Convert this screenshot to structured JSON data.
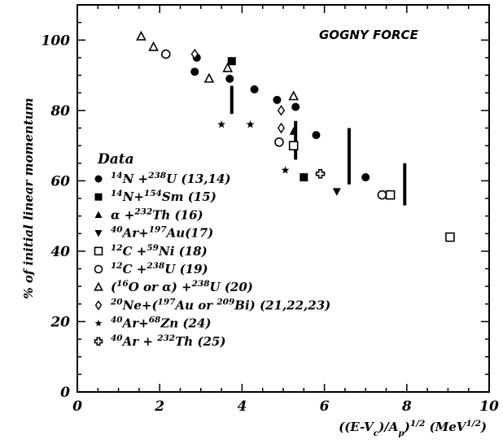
{
  "chart_data": {
    "type": "scatter",
    "title": "",
    "annotation": "GOGNY FORCE",
    "xlabel": "((E-V_c)/A_p)^1/2 (MeV^1/2)",
    "ylabel": "% of initial linear momentum",
    "xlim": [
      0,
      10
    ],
    "ylim": [
      0,
      110
    ],
    "x_ticks": [
      0,
      2,
      4,
      6,
      8,
      10
    ],
    "y_ticks": [
      0,
      20,
      40,
      60,
      80,
      100
    ],
    "grid": false,
    "legend_title": "Data",
    "legend_position": "left",
    "series": [
      {
        "name": "14N + 238U (13,14)",
        "label": [
          [
            "",
            "14"
          ],
          [
            "N +",
            ""
          ],
          [
            "",
            "238"
          ],
          [
            "U (13,14)",
            ""
          ]
        ],
        "marker": "filled-circle",
        "points": [
          [
            2.85,
            91
          ],
          [
            2.9,
            95
          ],
          [
            3.7,
            89
          ],
          [
            4.3,
            86
          ],
          [
            4.85,
            83
          ],
          [
            5.3,
            81
          ],
          [
            5.8,
            73
          ],
          [
            7.0,
            61
          ]
        ]
      },
      {
        "name": "14N+154Sm (15)",
        "label": [
          [
            "",
            "14"
          ],
          [
            "N+",
            ""
          ],
          [
            "",
            "154"
          ],
          [
            "Sm (15)",
            ""
          ]
        ],
        "marker": "filled-square",
        "points": [
          [
            3.75,
            94
          ],
          [
            5.5,
            61
          ]
        ]
      },
      {
        "name": "α +232Th (16)",
        "label": [
          [
            "α +",
            ""
          ],
          [
            "",
            "232"
          ],
          [
            "Th (16)",
            ""
          ]
        ],
        "marker": "filled-triangle-up",
        "points": [
          [
            5.25,
            74
          ]
        ]
      },
      {
        "name": "40Ar+197Au(17)",
        "label": [
          [
            "",
            "40"
          ],
          [
            "Ar+",
            ""
          ],
          [
            "",
            "197"
          ],
          [
            "Au(17)",
            ""
          ]
        ],
        "marker": "filled-triangle-down",
        "points": [
          [
            6.3,
            57
          ]
        ]
      },
      {
        "name": "12C +59Ni (18)",
        "label": [
          [
            "",
            "12"
          ],
          [
            "C +",
            ""
          ],
          [
            "",
            "59"
          ],
          [
            "Ni (18)",
            ""
          ]
        ],
        "marker": "open-square",
        "points": [
          [
            5.25,
            70
          ],
          [
            7.6,
            56
          ],
          [
            9.05,
            44
          ]
        ]
      },
      {
        "name": "12C +238U (19)",
        "label": [
          [
            "",
            "12"
          ],
          [
            "C +",
            ""
          ],
          [
            "",
            "238"
          ],
          [
            "U (19)",
            ""
          ]
        ],
        "marker": "open-circle",
        "points": [
          [
            2.15,
            96
          ],
          [
            4.9,
            71
          ],
          [
            7.4,
            56
          ]
        ]
      },
      {
        "name": "(16O or α) +238U (20)",
        "label": [
          [
            "(",
            ""
          ],
          [
            "",
            "16"
          ],
          [
            "O or α) +",
            ""
          ],
          [
            "",
            "238"
          ],
          [
            "U (20)",
            ""
          ]
        ],
        "marker": "open-triangle-up",
        "points": [
          [
            1.55,
            101
          ],
          [
            1.85,
            98
          ],
          [
            3.2,
            89
          ],
          [
            3.65,
            92
          ],
          [
            5.25,
            84
          ]
        ]
      },
      {
        "name": "20Ne+(197Au or 209Bi) (21,22,23)",
        "label": [
          [
            "",
            "20"
          ],
          [
            "Ne+(",
            ""
          ],
          [
            "",
            "197"
          ],
          [
            "Au or ",
            ""
          ],
          [
            "",
            "209"
          ],
          [
            "Bi) (21,22,23)",
            ""
          ]
        ],
        "marker": "open-diamond",
        "points": [
          [
            2.85,
            96
          ],
          [
            4.95,
            80
          ],
          [
            4.95,
            75
          ]
        ]
      },
      {
        "name": "40Ar+68Zn (24)",
        "label": [
          [
            "",
            "40"
          ],
          [
            "Ar+",
            ""
          ],
          [
            "",
            "68"
          ],
          [
            "Zn (24)",
            ""
          ]
        ],
        "marker": "filled-star",
        "points": [
          [
            3.5,
            76
          ],
          [
            4.2,
            76
          ],
          [
            5.05,
            63
          ]
        ]
      },
      {
        "name": "40Ar + 232Th (25)",
        "label": [
          [
            "",
            "40"
          ],
          [
            "Ar + ",
            ""
          ],
          [
            "",
            "232"
          ],
          [
            "Th (25)",
            ""
          ]
        ],
        "marker": "open-cross",
        "points": [
          [
            5.9,
            62
          ]
        ]
      }
    ],
    "calculation_bars": [
      {
        "x": 3.75,
        "y_low": 79,
        "y_high": 87
      },
      {
        "x": 5.3,
        "y_low": 66,
        "y_high": 77
      },
      {
        "x": 6.6,
        "y_low": 59,
        "y_high": 75
      },
      {
        "x": 7.95,
        "y_low": 53,
        "y_high": 65
      }
    ]
  }
}
